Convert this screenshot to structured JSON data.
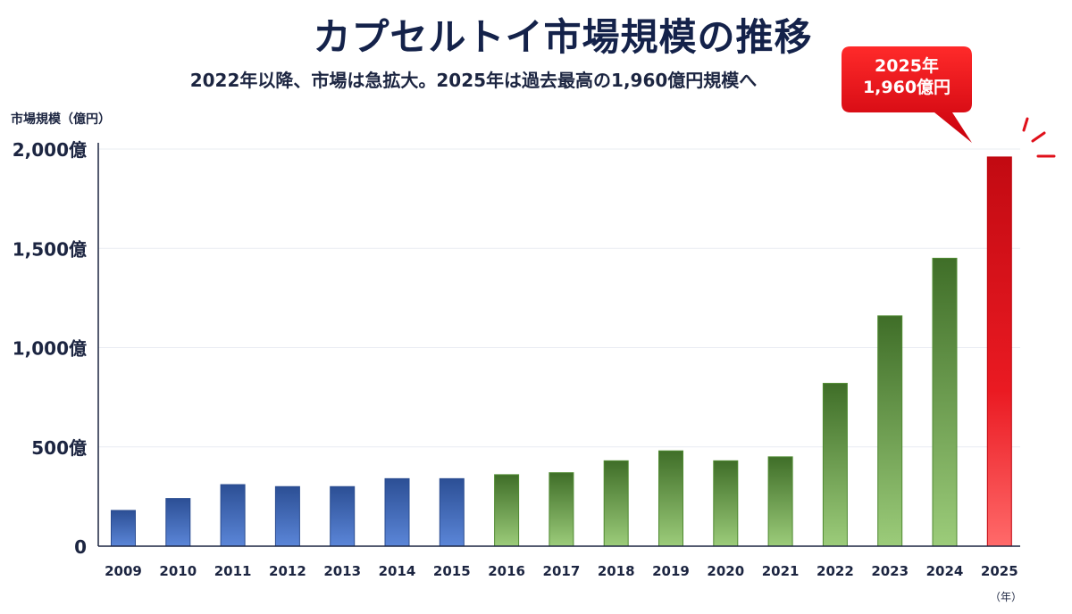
{
  "title": "カプセルトイ市場規模の推移",
  "subtitle": "2022年以降、市場は急拡大。2025年は過去最高の1,960億円規模へ",
  "y_unit_label": "市場規模（億円）",
  "x_unit_label": "（年）",
  "callout": {
    "line1": "2025年",
    "line2": "1,960億円"
  },
  "colors": {
    "blue": "#3a62ad",
    "green": "#5a9a3c",
    "red": "#e0101a",
    "text": "#1c2541"
  },
  "chart_data": {
    "type": "bar",
    "title": "カプセルトイ市場規模の推移",
    "subtitle": "2022年以降、市場は急拡大。2025年は過去最高の1,960億円規模へ",
    "ylabel": "市場規模（億円）",
    "xlabel": "（年）",
    "ylim": [
      0,
      2000
    ],
    "yticks": [
      0,
      500,
      1000,
      1500,
      2000
    ],
    "ytick_labels": [
      "0",
      "500億",
      "1,000億",
      "1,500億",
      "2,000億"
    ],
    "grid": true,
    "categories": [
      "2009",
      "2010",
      "2011",
      "2012",
      "2013",
      "2014",
      "2015",
      "2016",
      "2017",
      "2018",
      "2019",
      "2020",
      "2021",
      "2022",
      "2023",
      "2024",
      "2025"
    ],
    "values": [
      180,
      240,
      310,
      300,
      300,
      340,
      340,
      360,
      370,
      430,
      480,
      430,
      450,
      820,
      1160,
      1450,
      1960
    ]
  }
}
